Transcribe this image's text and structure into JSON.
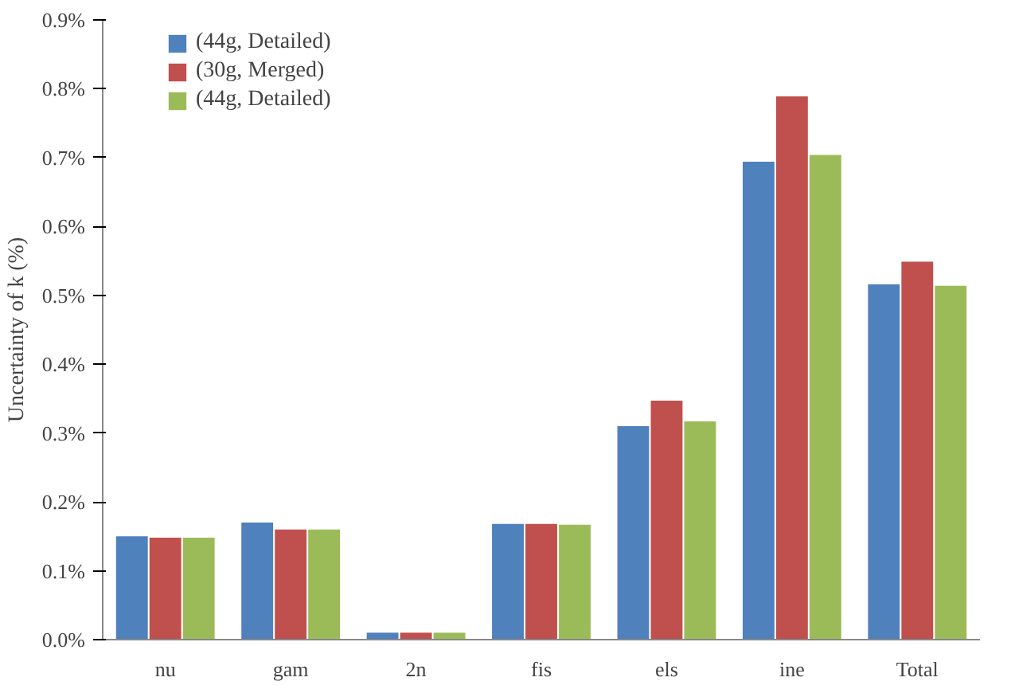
{
  "chart_data": {
    "type": "bar",
    "ylabel": "Uncertainty of k (%)",
    "categories": [
      "nu",
      "gam",
      "2n",
      "fis",
      "els",
      "ine",
      "Total"
    ],
    "series": [
      {
        "name": "(44g, Detailed)",
        "color": "#4f81bd",
        "values": [
          0.15,
          0.17,
          0.01,
          0.168,
          0.31,
          0.694,
          0.516
        ]
      },
      {
        "name": "(30g, Merged)",
        "color": "#c0504d",
        "values": [
          0.148,
          0.16,
          0.01,
          0.168,
          0.347,
          0.789,
          0.549
        ]
      },
      {
        "name": "(44g, Detailed)",
        "color": "#9bbb59",
        "values": [
          0.148,
          0.16,
          0.01,
          0.167,
          0.317,
          0.704,
          0.514
        ]
      }
    ],
    "ylim": [
      0,
      0.9
    ],
    "yticks": [
      {
        "value": 0,
        "label": "0.0%"
      },
      {
        "value": 0.1,
        "label": "0.1%"
      },
      {
        "value": 0.2,
        "label": "0.2%"
      },
      {
        "value": 0.3,
        "label": "0.3%"
      },
      {
        "value": 0.4,
        "label": "0.4%"
      },
      {
        "value": 0.5,
        "label": "0.5%"
      },
      {
        "value": 0.6,
        "label": "0.6%"
      },
      {
        "value": 0.7,
        "label": "0.7%"
      },
      {
        "value": 0.8,
        "label": "0.8%"
      },
      {
        "value": 0.9,
        "label": "0.9%"
      }
    ],
    "grid": false,
    "legend": "top left"
  }
}
